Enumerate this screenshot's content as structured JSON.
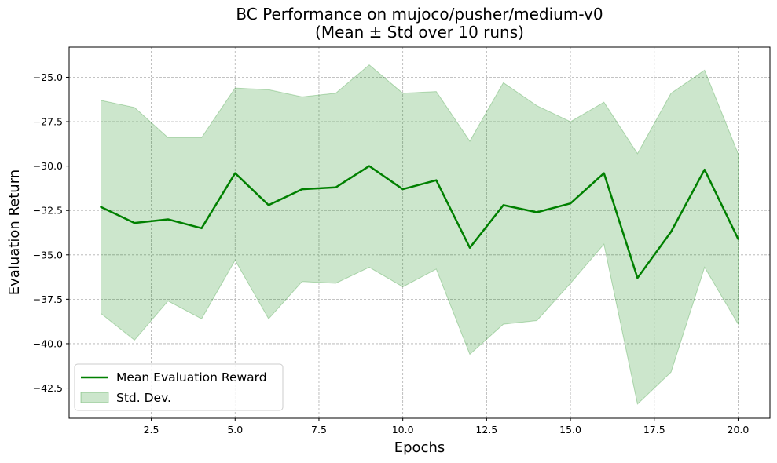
{
  "chart_data": {
    "type": "line",
    "title": "BC Performance on mujoco/pusher/medium-v0",
    "subtitle": "(Mean ± Std over 10 runs)",
    "xlabel": "Epochs",
    "ylabel": "Evaluation Return",
    "xlim": [
      0.05,
      20.95
    ],
    "ylim": [
      -44.2,
      -23.3
    ],
    "xticks": [
      2.5,
      5.0,
      7.5,
      10.0,
      12.5,
      15.0,
      17.5,
      20.0
    ],
    "xtick_labels": [
      "2.5",
      "5.0",
      "7.5",
      "10.0",
      "12.5",
      "15.0",
      "17.5",
      "20.0"
    ],
    "yticks": [
      -42.5,
      -40.0,
      -37.5,
      -35.0,
      -32.5,
      -30.0,
      -27.5,
      -25.0
    ],
    "ytick_labels": [
      "−42.5",
      "−40.0",
      "−37.5",
      "−35.0",
      "−32.5",
      "−30.0",
      "−27.5",
      "−25.0"
    ],
    "grid": true,
    "legend_position": "lower-left",
    "x": [
      1,
      2,
      3,
      4,
      5,
      6,
      7,
      8,
      9,
      10,
      11,
      12,
      13,
      14,
      15,
      16,
      17,
      18,
      19,
      20
    ],
    "series": [
      {
        "name": "Mean Evaluation Reward",
        "color": "#008000",
        "values": [
          -32.3,
          -33.2,
          -33.0,
          -33.5,
          -30.4,
          -32.2,
          -31.3,
          -31.2,
          -30.0,
          -31.3,
          -30.8,
          -34.6,
          -32.2,
          -32.6,
          -32.1,
          -30.4,
          -36.3,
          -33.7,
          -30.2,
          -34.1
        ]
      }
    ],
    "band": {
      "name": "Std. Dev.",
      "color": "#008000",
      "opacity": 0.2,
      "upper": [
        -26.3,
        -26.7,
        -28.4,
        -28.4,
        -25.6,
        -25.7,
        -26.1,
        -25.9,
        -24.3,
        -25.9,
        -25.8,
        -28.6,
        -25.3,
        -26.6,
        -27.5,
        -26.4,
        -29.3,
        -25.9,
        -24.6,
        -29.3
      ],
      "lower": [
        -38.3,
        -39.8,
        -37.6,
        -38.6,
        -35.3,
        -38.6,
        -36.5,
        -36.6,
        -35.7,
        -36.8,
        -35.8,
        -40.6,
        -38.9,
        -38.7,
        -36.6,
        -34.4,
        -43.4,
        -41.6,
        -35.7,
        -38.9
      ]
    }
  }
}
